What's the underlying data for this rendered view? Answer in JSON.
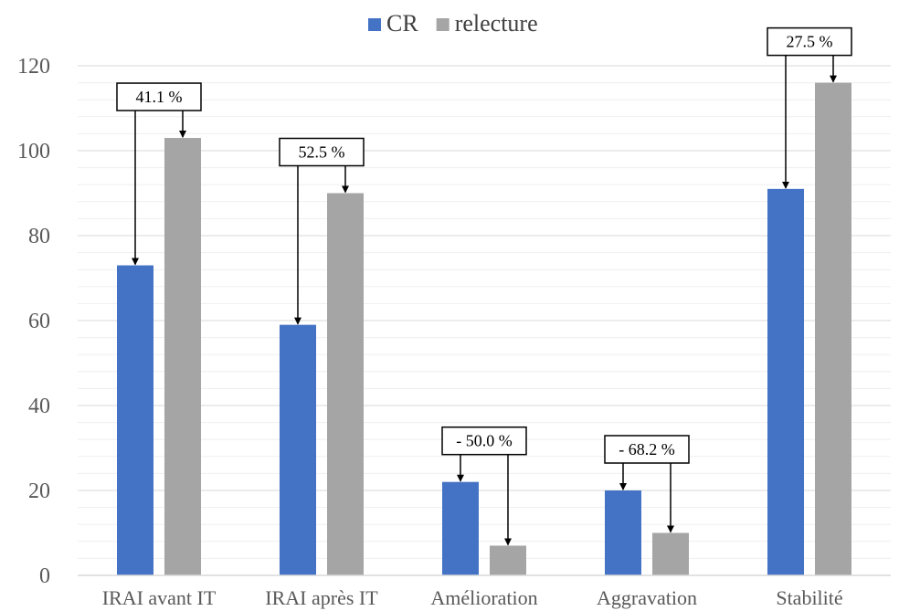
{
  "chart_data": {
    "type": "bar",
    "categories": [
      "IRAI avant IT",
      "IRAI après IT",
      "Amélioration",
      "Aggravation",
      "Stabilité"
    ],
    "series": [
      {
        "name": "CR",
        "values": [
          73,
          59,
          22,
          20,
          91
        ],
        "color": "#4472C4"
      },
      {
        "name": "relecture",
        "values": [
          103,
          90,
          7,
          10,
          116
        ],
        "color": "#A5A5A5"
      }
    ],
    "annotations": [
      "41.1 %",
      "52.5 %",
      "- 50.0 %",
      "- 68.2 %",
      "27.5 %"
    ],
    "ylim": [
      0,
      120
    ],
    "yticks": [
      0,
      20,
      40,
      60,
      80,
      100,
      120
    ],
    "grid": true,
    "legend_position": "top"
  }
}
